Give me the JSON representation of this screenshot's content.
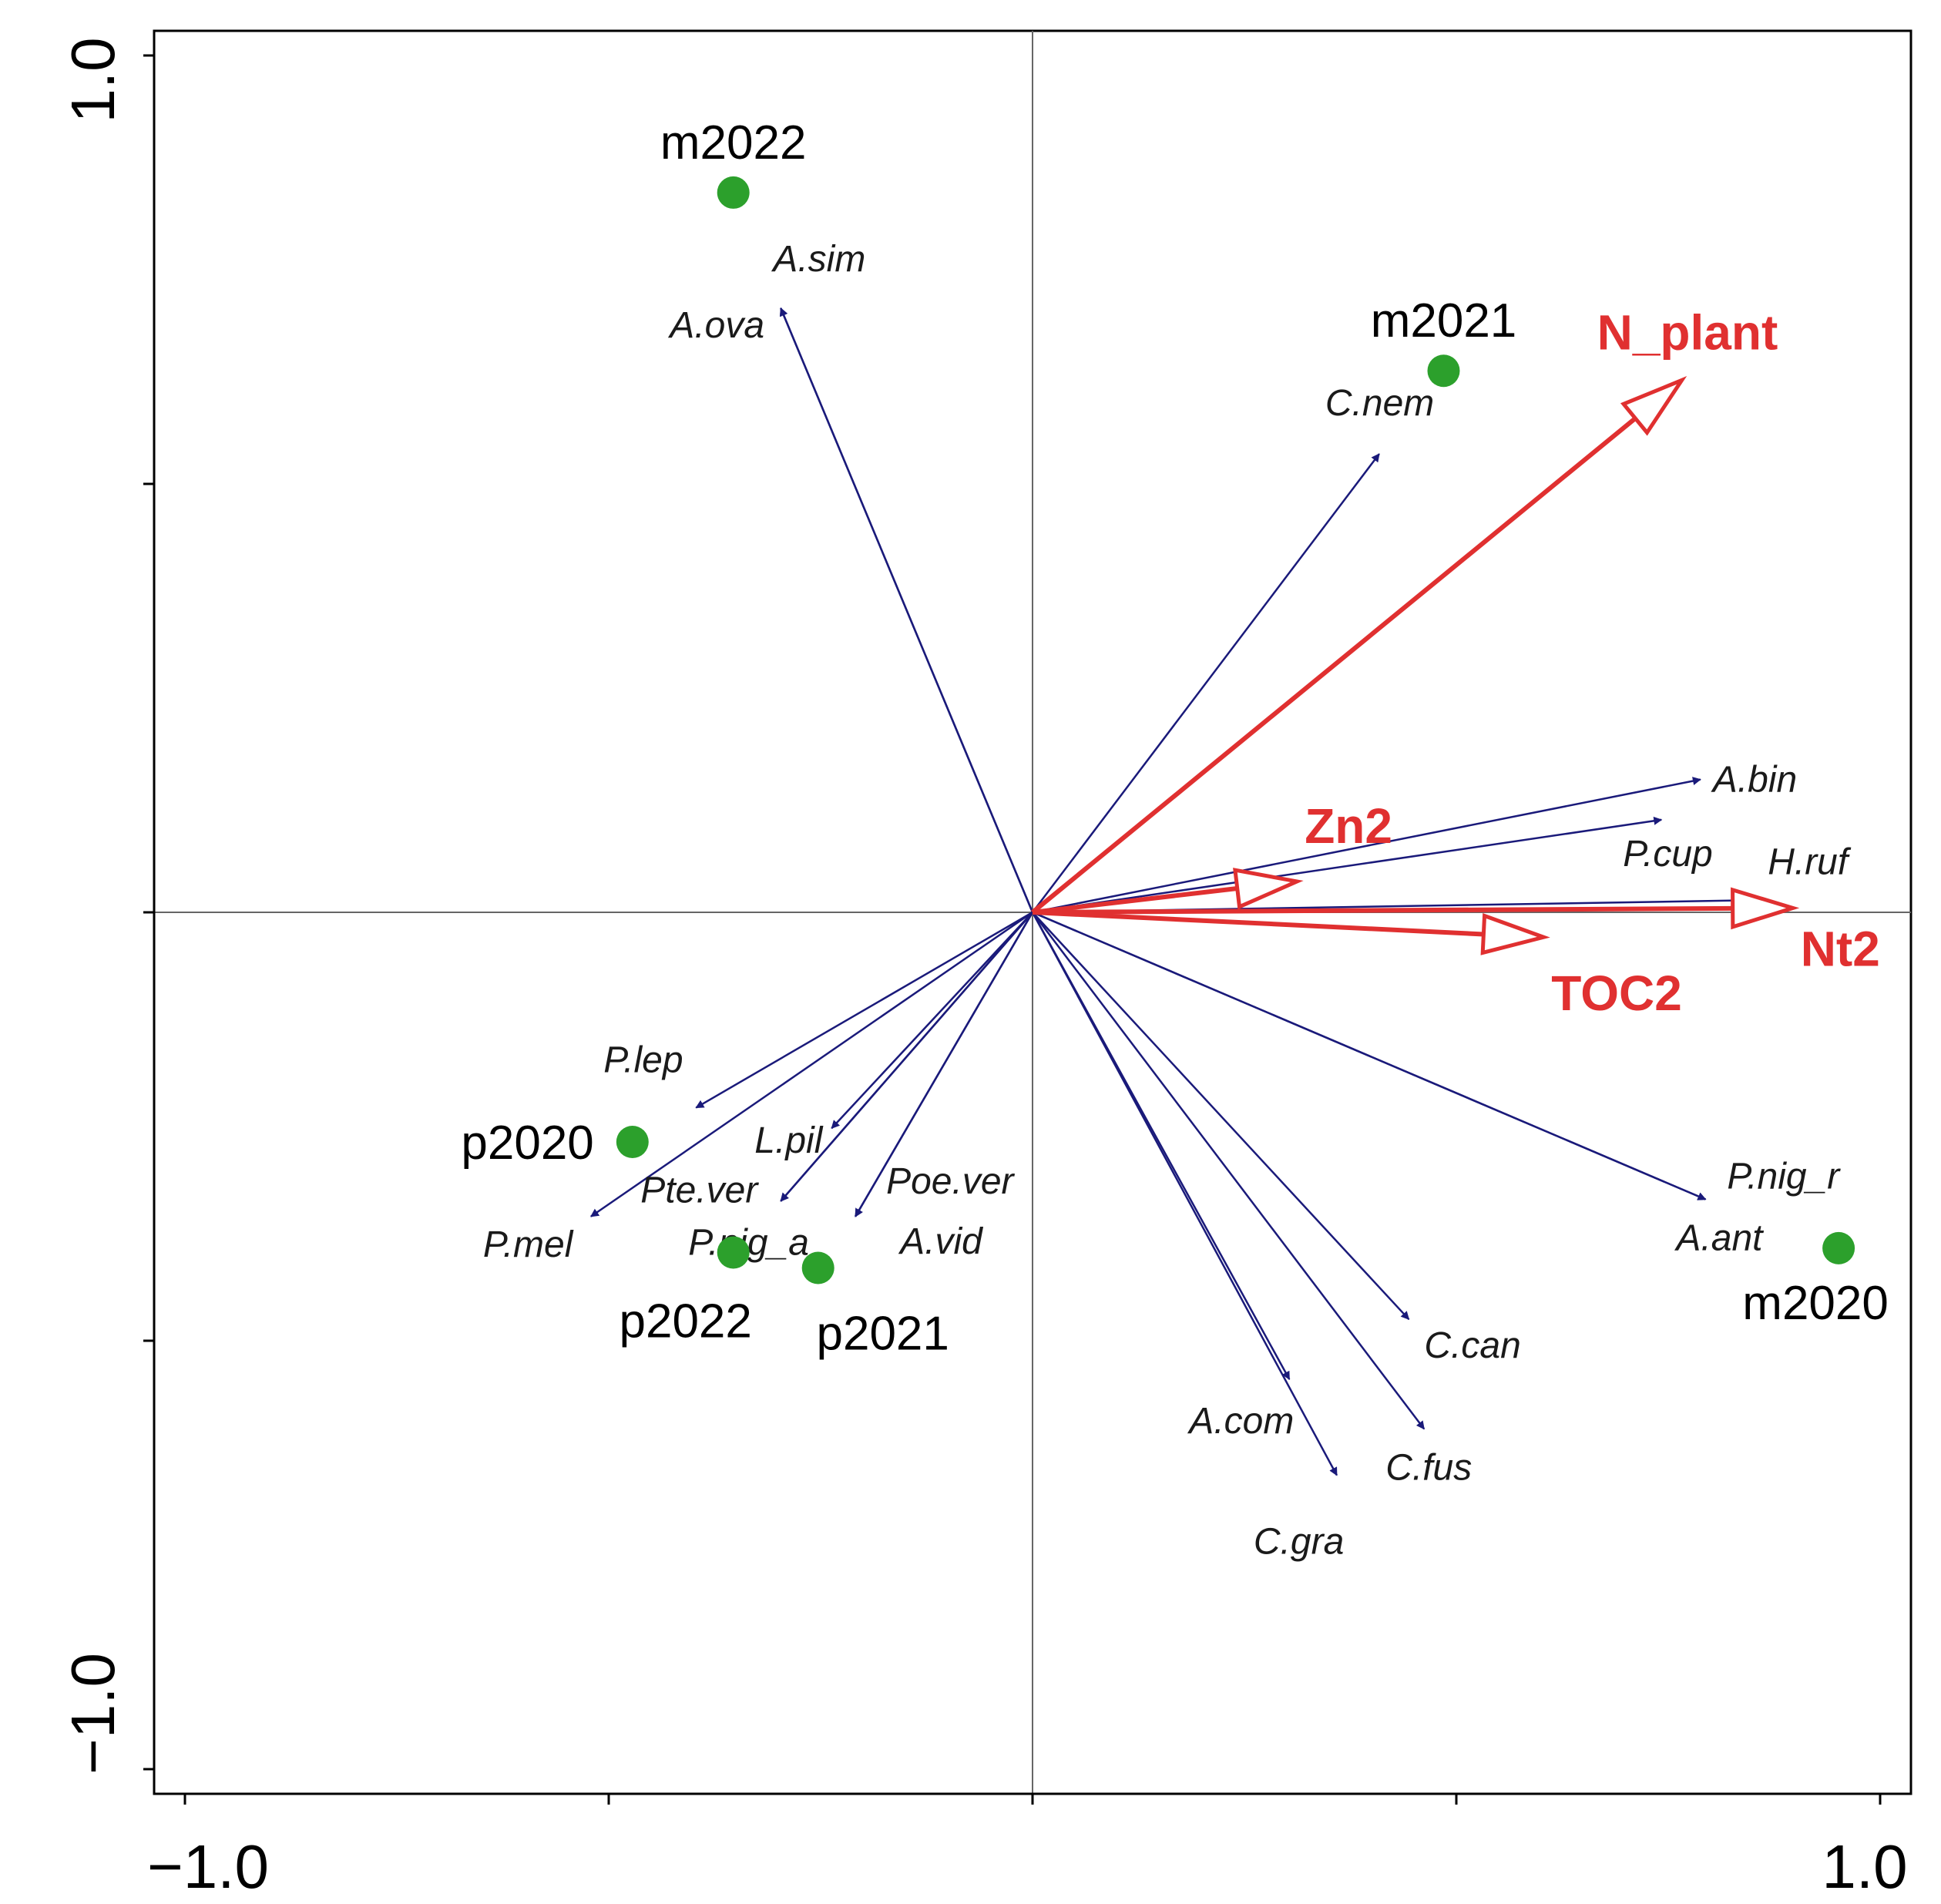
{
  "chart_data": {
    "type": "scatter",
    "subtype": "ordination-biplot",
    "title": "",
    "xlabel": "",
    "ylabel": "",
    "xlim": [
      -1.0,
      1.0
    ],
    "ylim": [
      -1.0,
      1.0
    ],
    "x_tick_labels": [
      "−1.0",
      "1.0"
    ],
    "y_tick_labels": [
      "1.0",
      "−1.0"
    ],
    "x_ticks": [
      -1.0,
      -0.5,
      0.0,
      0.5,
      1.0
    ],
    "y_ticks": [
      1.0,
      0.5,
      0.0,
      -0.5,
      -1.0
    ],
    "grid": false,
    "zero_lines": true,
    "colors": {
      "site": "#2ca02c",
      "species": "#1a1a7a",
      "env": "#e03030",
      "axis": "#000000",
      "zero": "#666666"
    },
    "sites": [
      {
        "name": "m2022",
        "x": -0.353,
        "y": 0.84
      },
      {
        "name": "m2021",
        "x": 0.485,
        "y": 0.632
      },
      {
        "name": "m2020",
        "x": 0.951,
        "y": -0.392
      },
      {
        "name": "p2020",
        "x": -0.472,
        "y": -0.268
      },
      {
        "name": "p2022",
        "x": -0.353,
        "y": -0.397
      },
      {
        "name": "p2021",
        "x": -0.253,
        "y": -0.415
      }
    ],
    "species": [
      {
        "name": "A.sim",
        "x": -0.297,
        "y": 0.705
      },
      {
        "name": "A.ova",
        "x": -0.297,
        "y": 0.705
      },
      {
        "name": "C.nem",
        "x": 0.409,
        "y": 0.535
      },
      {
        "name": "A.bin",
        "x": 0.788,
        "y": 0.155
      },
      {
        "name": "P.cup",
        "x": 0.742,
        "y": 0.108
      },
      {
        "name": "H.ruf",
        "x": 0.842,
        "y": 0.014
      },
      {
        "name": "P.nig_r",
        "x": 0.794,
        "y": -0.335
      },
      {
        "name": "A.ant",
        "x": 0.794,
        "y": -0.335
      },
      {
        "name": "C.can",
        "x": 0.444,
        "y": -0.475
      },
      {
        "name": "C.fus",
        "x": 0.462,
        "y": -0.603
      },
      {
        "name": "A.com",
        "x": 0.303,
        "y": -0.545
      },
      {
        "name": "C.gra",
        "x": 0.359,
        "y": -0.657
      },
      {
        "name": "P.lep",
        "x": -0.397,
        "y": -0.228
      },
      {
        "name": "P.mel",
        "x": -0.521,
        "y": -0.355
      },
      {
        "name": "L.pil",
        "x": -0.237,
        "y": -0.252
      },
      {
        "name": "Pte.ver",
        "x": -0.297,
        "y": -0.337
      },
      {
        "name": "P.nig_a",
        "x": -0.297,
        "y": -0.337
      },
      {
        "name": "Poe.ver",
        "x": -0.209,
        "y": -0.355
      },
      {
        "name": "A.vid",
        "x": -0.209,
        "y": -0.355
      }
    ],
    "env_variables": [
      {
        "name": "N_plant",
        "x": 0.766,
        "y": 0.621
      },
      {
        "name": "Zn2",
        "x": 0.312,
        "y": 0.036
      },
      {
        "name": "TOC2",
        "x": 0.603,
        "y": -0.029
      },
      {
        "name": "Nt2",
        "x": 0.897,
        "y": 0.005
      }
    ]
  }
}
